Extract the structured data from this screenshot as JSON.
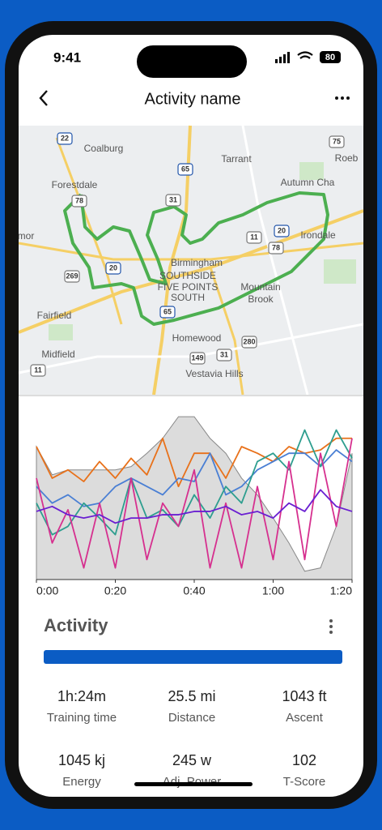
{
  "status_bar": {
    "time": "9:41",
    "battery": "80"
  },
  "header": {
    "title": "Activity name"
  },
  "map": {
    "places": [
      "Coalburg",
      "Tarrant",
      "Forestdale",
      "Autumn Cha",
      "Roeb",
      "Birmingham",
      "SOUTHSIDE",
      "FIVE POINTS",
      "SOUTH",
      "Mountain",
      "Brook",
      "Irondale",
      "Fairfield",
      "Homewood",
      "Midfield",
      "Vestavia Hills",
      "mor"
    ],
    "shields": [
      "22",
      "65",
      "75",
      "78",
      "31",
      "20",
      "11",
      "78",
      "269",
      "20",
      "65",
      "280",
      "149",
      "31",
      "11"
    ]
  },
  "chart_data": {
    "type": "line",
    "x": [
      0,
      4,
      8,
      12,
      16,
      20,
      24,
      28,
      32,
      36,
      40,
      44,
      48,
      52,
      56,
      60,
      64,
      68,
      72,
      76,
      80
    ],
    "xlim": [
      0,
      80
    ],
    "xticks": [
      {
        "value": 0,
        "label": "0:00"
      },
      {
        "value": 20,
        "label": "0:20"
      },
      {
        "value": 40,
        "label": "0:40"
      },
      {
        "value": 60,
        "label": "1:00"
      },
      {
        "value": 80,
        "label": "1:20"
      }
    ],
    "ylim": [
      0,
      100
    ],
    "series": [
      {
        "style": "area",
        "color": "#dcdcdc",
        "values": [
          80,
          63,
          66,
          66,
          66,
          66,
          68,
          76,
          85,
          98,
          98,
          85,
          76,
          61,
          51,
          37,
          22,
          5,
          7,
          32,
          76
        ]
      },
      {
        "color": "#e8711a",
        "values": [
          80,
          61,
          66,
          59,
          71,
          61,
          73,
          63,
          85,
          56,
          76,
          76,
          61,
          80,
          76,
          71,
          80,
          76,
          78,
          85,
          85
        ]
      },
      {
        "color": "#4a7fd4",
        "values": [
          56,
          46,
          51,
          44,
          46,
          56,
          61,
          56,
          51,
          61,
          59,
          76,
          51,
          56,
          66,
          71,
          76,
          76,
          68,
          78,
          71
        ]
      },
      {
        "color": "#2e9e8f",
        "values": [
          46,
          27,
          32,
          46,
          37,
          27,
          61,
          37,
          42,
          32,
          51,
          37,
          56,
          46,
          71,
          76,
          66,
          90,
          68,
          90,
          73
        ]
      },
      {
        "color": "#d6308f",
        "values": [
          61,
          22,
          42,
          7,
          46,
          7,
          61,
          12,
          46,
          32,
          66,
          7,
          46,
          7,
          56,
          12,
          71,
          12,
          76,
          32,
          85
        ]
      },
      {
        "color": "#6a1fd1",
        "values": [
          41,
          44,
          39,
          37,
          39,
          34,
          37,
          37,
          39,
          39,
          41,
          41,
          44,
          39,
          41,
          37,
          46,
          41,
          54,
          44,
          41
        ]
      }
    ]
  },
  "activity": {
    "title": "Activity",
    "stats": [
      {
        "value": "1h:24m",
        "label": "Training time"
      },
      {
        "value": "25.5 mi",
        "label": "Distance"
      },
      {
        "value": "1043 ft",
        "label": "Ascent"
      },
      {
        "value": "1045 kj",
        "label": "Energy"
      },
      {
        "value": "245 w",
        "label": "Adj. Power"
      },
      {
        "value": "102",
        "label": "T-Score"
      }
    ]
  }
}
